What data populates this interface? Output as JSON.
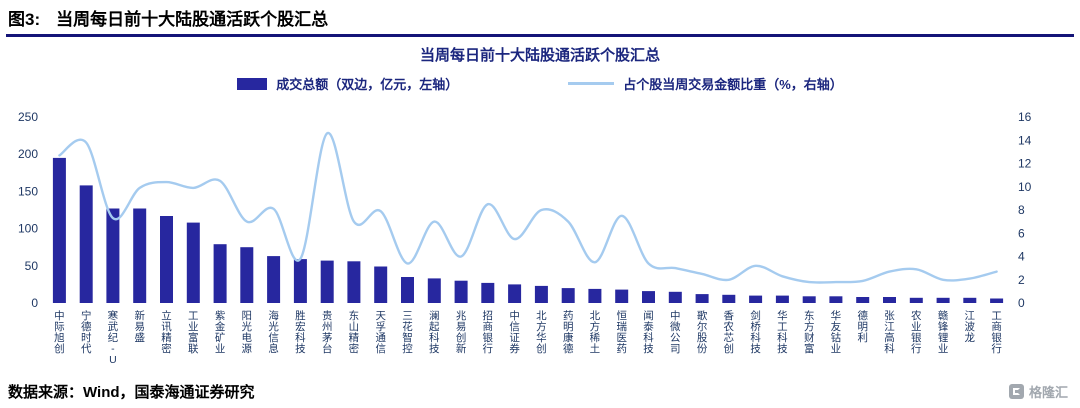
{
  "header": {
    "figure_label": "图3:",
    "figure_title": "当周每日前十大陆股通活跃个股汇总"
  },
  "chart_data": {
    "type": "bar+line",
    "title": "当周每日前十大陆股通活跃个股汇总",
    "legend_position": "top",
    "grid": false,
    "categories": [
      "中际旭创",
      "宁德时代",
      "寒武纪-U",
      "新易盛",
      "立讯精密",
      "工业富联",
      "紫金矿业",
      "阳光电源",
      "海光信息",
      "胜宏科技",
      "贵州茅台",
      "东山精密",
      "天孚通信",
      "三花智控",
      "澜起科技",
      "兆易创新",
      "招商银行",
      "中信证券",
      "北方华创",
      "药明康德",
      "北方稀土",
      "恒瑞医药",
      "闻泰科技",
      "中微公司",
      "歌尔股份",
      "香农芯创",
      "剑桥科技",
      "华工科技",
      "东方财富",
      "华友钴业",
      "德明利",
      "张江高科",
      "农业银行",
      "赣锋锂业",
      "江波龙",
      "工商银行"
    ],
    "series": [
      {
        "name": "成交总额（双边，亿元，左轴）",
        "type": "bar",
        "axis": "left",
        "color": "#27279f",
        "values": [
          195,
          158,
          127,
          127,
          117,
          108,
          79,
          75,
          63,
          59,
          57,
          56,
          49,
          35,
          33,
          30,
          27,
          25,
          23,
          20,
          19,
          18,
          16,
          15,
          12,
          11,
          10,
          10,
          9,
          9,
          8,
          8,
          7,
          7,
          7,
          6
        ]
      },
      {
        "name": "占个股当周交易金额比重（%，右轴）",
        "type": "line",
        "axis": "right",
        "color": "#a5cbef",
        "values": [
          12.7,
          13.8,
          7.3,
          9.9,
          10.4,
          9.9,
          10.5,
          7.0,
          8.1,
          3.8,
          14.6,
          7.0,
          7.9,
          3.4,
          7.0,
          4.0,
          8.5,
          5.5,
          8.0,
          7.0,
          3.5,
          7.5,
          3.4,
          3.0,
          2.5,
          2.0,
          3.2,
          2.3,
          1.8,
          1.8,
          1.9,
          2.7,
          2.9,
          2.0,
          2.1,
          2.7
        ]
      }
    ],
    "left_axis": {
      "min": 0,
      "max": 250,
      "ticks": [
        0,
        50,
        100,
        150,
        200,
        250
      ]
    },
    "right_axis": {
      "min": 0,
      "max": 16,
      "ticks": [
        0,
        2,
        4,
        6,
        8,
        10,
        12,
        14,
        16
      ]
    }
  },
  "footer": {
    "source": "数据来源：Wind，国泰海通证券研究",
    "logo_text": "格隆汇"
  },
  "colors": {
    "bar": "#27279f",
    "line": "#a5cbef",
    "chart_text": "#1b267e",
    "axis_text": "#1f3864",
    "underline": "#141478",
    "logo": "#a2a8af"
  }
}
